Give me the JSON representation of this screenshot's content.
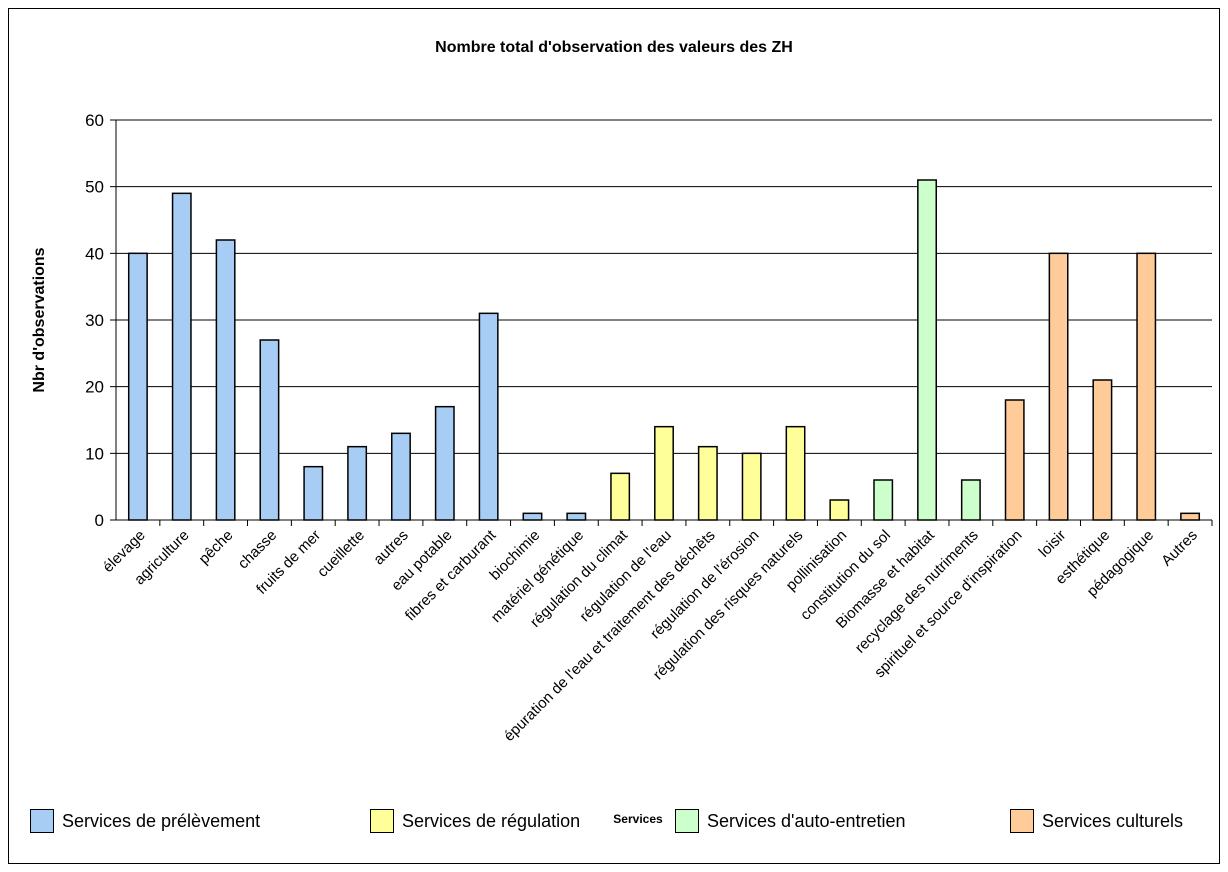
{
  "chart_data": {
    "type": "bar",
    "title": "Nombre total d'observation des valeurs des ZH",
    "xlabel": "Services",
    "ylabel": "Nbr d'observations",
    "ylim": [
      0,
      60
    ],
    "yticks": [
      0,
      10,
      20,
      30,
      40,
      50,
      60
    ],
    "grid": true,
    "legend_position": "bottom",
    "categories": [
      "élevage",
      "agriculture",
      "pêche",
      "chasse",
      "fruits de mer",
      "cueillette",
      "autres",
      "eau potable",
      "fibres et carburant",
      "biochimie",
      "matériel génétique",
      "régulation du climat",
      "régulation de l'eau",
      "épuration de l'eau et traitement des déchêts",
      "régulation de l'érosion",
      "régulation des risques naturels",
      "pollinisation",
      "constitution du sol",
      "Biomasse et habitat",
      "recyclage des nutriments",
      "spirituel et source d'inspiration",
      "loisir",
      "esthétique",
      "pédagogique",
      "Autres"
    ],
    "values": [
      40,
      49,
      42,
      27,
      8,
      11,
      13,
      17,
      31,
      1,
      1,
      7,
      14,
      11,
      10,
      14,
      3,
      6,
      51,
      6,
      18,
      40,
      21,
      40,
      1
    ],
    "groups": [
      0,
      0,
      0,
      0,
      0,
      0,
      0,
      0,
      0,
      0,
      0,
      1,
      1,
      1,
      1,
      1,
      1,
      2,
      2,
      2,
      3,
      3,
      3,
      3,
      3
    ],
    "series": [
      {
        "name": "Services de prélèvement",
        "color": "#A8CDF5"
      },
      {
        "name": "Services de régulation",
        "color": "#FFFF99"
      },
      {
        "name": "Services d'auto-entretien",
        "color": "#CCFFCC"
      },
      {
        "name": "Services culturels",
        "color": "#FFCC99"
      }
    ]
  }
}
